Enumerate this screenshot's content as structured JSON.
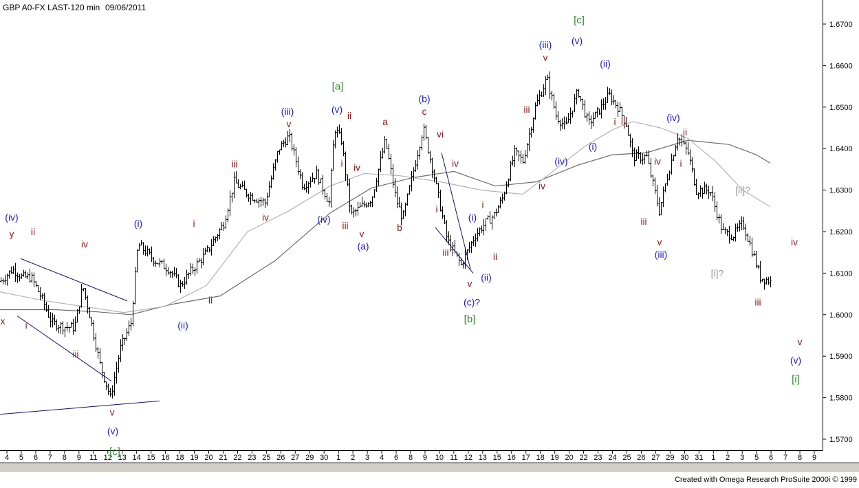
{
  "header": {
    "symbol": "GBP A0-FX LAST-120 min",
    "date": "09/06/2011"
  },
  "footer": {
    "credit": "Created with Omega Research ProSuite 2000i © 1999"
  },
  "colors": {
    "background": "#ffffff",
    "bars": "#000000",
    "wave_blue": "#1a1ad0",
    "wave_maroon": "#8b1a1a",
    "wave_green": "#2e8b2e",
    "wave_gray": "#9a9a9a",
    "trendline": "#10106e",
    "ma_slow": "#6a6a6a",
    "ma_fast": "#b4b4b4"
  },
  "chart_data": {
    "type": "ohlc",
    "title": "GBP A0-FX LAST-120 min",
    "ylim": [
      1.565,
      1.6735
    ],
    "y_ticks": [
      "1.5700",
      "1.5800",
      "1.5900",
      "1.6000",
      "1.6100",
      "1.6200",
      "1.6300",
      "1.6400",
      "1.6500",
      "1.6600",
      "1.6700"
    ],
    "y_tick_values": [
      1.57,
      1.58,
      1.59,
      1.6,
      1.61,
      1.62,
      1.63,
      1.64,
      1.65,
      1.66,
      1.67
    ],
    "x_ticks": [
      "4",
      "5",
      "6",
      "7",
      "8",
      "9",
      "11",
      "12",
      "13",
      "14",
      "15",
      "16",
      "18",
      "19",
      "20",
      "21",
      "22",
      "23",
      "25",
      "26",
      "27",
      "29",
      "30",
      "1",
      "2",
      "3",
      "4",
      "6",
      "8",
      "9",
      "10",
      "11",
      "12",
      "13",
      "15",
      "16",
      "17",
      "18",
      "19",
      "20",
      "22",
      "23",
      "24",
      "25",
      "26",
      "27",
      "29",
      "30",
      "31",
      "1",
      "2",
      "3",
      "5",
      "6",
      "7",
      "8",
      "9"
    ],
    "price_path": [
      [
        0,
        1.608
      ],
      [
        18,
        1.611
      ],
      [
        32,
        1.609
      ],
      [
        45,
        1.609
      ],
      [
        60,
        1.604
      ],
      [
        75,
        1.598
      ],
      [
        95,
        1.597
      ],
      [
        108,
        1.597
      ],
      [
        120,
        1.607
      ],
      [
        130,
        1.6
      ],
      [
        145,
        1.588
      ],
      [
        160,
        1.58
      ],
      [
        175,
        1.592
      ],
      [
        190,
        1.598
      ],
      [
        200,
        1.617
      ],
      [
        225,
        1.613
      ],
      [
        245,
        1.611
      ],
      [
        262,
        1.607
      ],
      [
        275,
        1.61
      ],
      [
        300,
        1.615
      ],
      [
        325,
        1.622
      ],
      [
        340,
        1.632
      ],
      [
        360,
        1.629
      ],
      [
        385,
        1.627
      ],
      [
        405,
        1.64
      ],
      [
        420,
        1.643
      ],
      [
        440,
        1.631
      ],
      [
        460,
        1.634
      ],
      [
        478,
        1.627
      ],
      [
        486,
        1.645
      ],
      [
        496,
        1.642
      ],
      [
        510,
        1.624
      ],
      [
        525,
        1.626
      ],
      [
        540,
        1.628
      ],
      [
        560,
        1.642
      ],
      [
        575,
        1.628
      ],
      [
        585,
        1.623
      ],
      [
        600,
        1.634
      ],
      [
        615,
        1.645
      ],
      [
        630,
        1.634
      ],
      [
        650,
        1.618
      ],
      [
        670,
        1.612
      ],
      [
        690,
        1.619
      ],
      [
        705,
        1.622
      ],
      [
        718,
        1.624
      ],
      [
        730,
        1.628
      ],
      [
        748,
        1.639
      ],
      [
        760,
        1.637
      ],
      [
        778,
        1.65
      ],
      [
        795,
        1.657
      ],
      [
        808,
        1.648
      ],
      [
        822,
        1.645
      ],
      [
        840,
        1.654
      ],
      [
        855,
        1.646
      ],
      [
        870,
        1.649
      ],
      [
        885,
        1.653
      ],
      [
        898,
        1.65
      ],
      [
        910,
        1.646
      ],
      [
        920,
        1.638
      ],
      [
        940,
        1.638
      ],
      [
        958,
        1.625
      ],
      [
        968,
        1.632
      ],
      [
        985,
        1.643
      ],
      [
        1000,
        1.639
      ],
      [
        1012,
        1.63
      ],
      [
        1032,
        1.63
      ],
      [
        1050,
        1.62
      ],
      [
        1065,
        1.619
      ],
      [
        1080,
        1.622
      ],
      [
        1092,
        1.616
      ],
      [
        1105,
        1.609
      ],
      [
        1120,
        1.608
      ]
    ],
    "moving_averages": [
      {
        "name": "",
        "color": "#6a6a6a",
        "points": [
          [
            0,
            1.6012
          ],
          [
            80,
            1.6012
          ],
          [
            140,
            1.6007
          ],
          [
            190,
            1.6
          ],
          [
            250,
            1.6025
          ],
          [
            320,
            1.6045
          ],
          [
            400,
            1.613
          ],
          [
            480,
            1.6245
          ],
          [
            540,
            1.6305
          ],
          [
            600,
            1.633
          ],
          [
            660,
            1.6345
          ],
          [
            720,
            1.631
          ],
          [
            780,
            1.632
          ],
          [
            840,
            1.636
          ],
          [
            890,
            1.6385
          ],
          [
            940,
            1.639
          ],
          [
            1000,
            1.642
          ],
          [
            1060,
            1.641
          ],
          [
            1100,
            1.6385
          ],
          [
            1120,
            1.6365
          ]
        ]
      },
      {
        "name": "",
        "color": "#b4b4b4",
        "points": [
          [
            0,
            1.6055
          ],
          [
            60,
            1.6035
          ],
          [
            120,
            1.602
          ],
          [
            180,
            1.6005
          ],
          [
            240,
            1.602
          ],
          [
            300,
            1.607
          ],
          [
            360,
            1.62
          ],
          [
            420,
            1.625
          ],
          [
            480,
            1.631
          ],
          [
            530,
            1.634
          ],
          [
            580,
            1.6335
          ],
          [
            640,
            1.632
          ],
          [
            700,
            1.63
          ],
          [
            760,
            1.629
          ],
          [
            800,
            1.634
          ],
          [
            850,
            1.6405
          ],
          [
            890,
            1.6445
          ],
          [
            920,
            1.6465
          ],
          [
            960,
            1.645
          ],
          [
            1000,
            1.6425
          ],
          [
            1040,
            1.637
          ],
          [
            1080,
            1.63
          ],
          [
            1120,
            1.626
          ]
        ]
      }
    ],
    "trendlines": [
      {
        "from": [
          30,
          1.6135
        ],
        "to": [
          185,
          1.6033
        ]
      },
      {
        "from": [
          25,
          1.5997
        ],
        "to": [
          162,
          1.584
        ]
      },
      {
        "from": [
          0,
          1.576
        ],
        "to": [
          232,
          1.5792
        ]
      },
      {
        "from": [
          642,
          1.639
        ],
        "to": [
          684,
          1.611
        ]
      },
      {
        "from": [
          633,
          1.621
        ],
        "to": [
          688,
          1.61
        ]
      }
    ],
    "wave_labels": [
      {
        "text": "(iv)",
        "x": 17,
        "y": 1.6235,
        "color": "blue"
      },
      {
        "text": "y",
        "x": 17,
        "y": 1.6195,
        "color": "maroon"
      },
      {
        "text": "ii",
        "x": 48,
        "y": 1.62,
        "color": "maroon"
      },
      {
        "text": "x",
        "x": 4,
        "y": 1.5985,
        "color": "maroon"
      },
      {
        "text": "i",
        "x": 38,
        "y": 1.5975,
        "color": "maroon"
      },
      {
        "text": "iv",
        "x": 123,
        "y": 1.617,
        "color": "maroon"
      },
      {
        "text": "iii",
        "x": 110,
        "y": 1.5905,
        "color": "maroon"
      },
      {
        "text": "v",
        "x": 163,
        "y": 1.5765,
        "color": "maroon"
      },
      {
        "text": "(v)",
        "x": 164,
        "y": 1.572,
        "color": "blue"
      },
      {
        "text": "[c]",
        "x": 167,
        "y": 1.567,
        "color": "green"
      },
      {
        "text": "(i)",
        "x": 201,
        "y": 1.622,
        "color": "blue"
      },
      {
        "text": "i",
        "x": 282,
        "y": 1.622,
        "color": "maroon"
      },
      {
        "text": "(ii)",
        "x": 266,
        "y": 1.5975,
        "color": "blue"
      },
      {
        "text": "ii",
        "x": 306,
        "y": 1.6035,
        "color": "maroon"
      },
      {
        "text": "iii",
        "x": 341,
        "y": 1.6363,
        "color": "maroon"
      },
      {
        "text": "iv",
        "x": 386,
        "y": 1.6235,
        "color": "maroon"
      },
      {
        "text": "(iii)",
        "x": 418,
        "y": 1.649,
        "color": "blue"
      },
      {
        "text": "v",
        "x": 420,
        "y": 1.646,
        "color": "maroon"
      },
      {
        "text": "(iv)",
        "x": 471,
        "y": 1.623,
        "color": "blue"
      },
      {
        "text": "[a]",
        "x": 491,
        "y": 1.655,
        "color": "green"
      },
      {
        "text": "(v)",
        "x": 490,
        "y": 1.6495,
        "color": "blue"
      },
      {
        "text": "ii",
        "x": 508,
        "y": 1.648,
        "color": "maroon"
      },
      {
        "text": "i",
        "x": 497,
        "y": 1.6365,
        "color": "maroon"
      },
      {
        "text": "iv",
        "x": 519,
        "y": 1.6355,
        "color": "maroon"
      },
      {
        "text": "iii",
        "x": 502,
        "y": 1.6215,
        "color": "maroon"
      },
      {
        "text": "v",
        "x": 526,
        "y": 1.6195,
        "color": "maroon"
      },
      {
        "text": "(a)",
        "x": 528,
        "y": 1.6165,
        "color": "blue"
      },
      {
        "text": "a",
        "x": 560,
        "y": 1.6465,
        "color": "maroon"
      },
      {
        "text": "b",
        "x": 581,
        "y": 1.621,
        "color": "maroon"
      },
      {
        "text": "(b)",
        "x": 617,
        "y": 1.652,
        "color": "blue"
      },
      {
        "text": "c",
        "x": 617,
        "y": 1.649,
        "color": "maroon"
      },
      {
        "text": "vi",
        "x": 640,
        "y": 1.6435,
        "color": "maroon"
      },
      {
        "text": "iv",
        "x": 662,
        "y": 1.6365,
        "color": "maroon"
      },
      {
        "text": "i",
        "x": 635,
        "y": 1.6255,
        "color": "maroon"
      },
      {
        "text": "(i)",
        "x": 687,
        "y": 1.6235,
        "color": "blue"
      },
      {
        "text": "i",
        "x": 702,
        "y": 1.6265,
        "color": "maroon"
      },
      {
        "text": "iii",
        "x": 648,
        "y": 1.615,
        "color": "maroon"
      },
      {
        "text": "ii",
        "x": 720,
        "y": 1.614,
        "color": "maroon"
      },
      {
        "text": "v",
        "x": 683,
        "y": 1.6075,
        "color": "maroon"
      },
      {
        "text": "(ii)",
        "x": 707,
        "y": 1.609,
        "color": "blue"
      },
      {
        "text": "(c)?",
        "x": 686,
        "y": 1.603,
        "color": "blue"
      },
      {
        "text": "[b]",
        "x": 683,
        "y": 1.599,
        "color": "green"
      },
      {
        "text": "iii",
        "x": 766,
        "y": 1.6495,
        "color": "maroon"
      },
      {
        "text": "iv",
        "x": 788,
        "y": 1.631,
        "color": "maroon"
      },
      {
        "text": "(iv)",
        "x": 816,
        "y": 1.637,
        "color": "blue"
      },
      {
        "text": "(iii)",
        "x": 793,
        "y": 1.665,
        "color": "blue"
      },
      {
        "text": "v",
        "x": 793,
        "y": 1.662,
        "color": "maroon"
      },
      {
        "text": "(v)",
        "x": 839,
        "y": 1.666,
        "color": "blue"
      },
      {
        "text": "[c]",
        "x": 842,
        "y": 1.671,
        "color": "green"
      },
      {
        "text": "(ii)",
        "x": 880,
        "y": 1.6605,
        "color": "blue"
      },
      {
        "text": "ii",
        "x": 906,
        "y": 1.6465,
        "color": "maroon"
      },
      {
        "text": "i",
        "x": 894,
        "y": 1.6465,
        "color": "maroon"
      },
      {
        "text": "(i)",
        "x": 862,
        "y": 1.6405,
        "color": "blue"
      },
      {
        "text": "iv",
        "x": 956,
        "y": 1.637,
        "color": "maroon"
      },
      {
        "text": "i",
        "x": 990,
        "y": 1.6365,
        "color": "maroon"
      },
      {
        "text": "(iv)",
        "x": 979,
        "y": 1.6475,
        "color": "blue"
      },
      {
        "text": "ii",
        "x": 996,
        "y": 1.644,
        "color": "maroon"
      },
      {
        "text": "iii",
        "x": 936,
        "y": 1.6225,
        "color": "maroon"
      },
      {
        "text": "v",
        "x": 959,
        "y": 1.6175,
        "color": "maroon"
      },
      {
        "text": "(iii)",
        "x": 961,
        "y": 1.6145,
        "color": "blue"
      },
      {
        "text": "[ii]?",
        "x": 1080,
        "y": 1.63,
        "color": "gray"
      },
      {
        "text": "[i]?",
        "x": 1043,
        "y": 1.61,
        "color": "gray"
      },
      {
        "text": "iii",
        "x": 1102,
        "y": 1.603,
        "color": "maroon"
      },
      {
        "text": "iv",
        "x": 1155,
        "y": 1.6175,
        "color": "maroon"
      },
      {
        "text": "v",
        "x": 1163,
        "y": 1.5935,
        "color": "maroon"
      },
      {
        "text": "(v)",
        "x": 1157,
        "y": 1.589,
        "color": "blue"
      },
      {
        "text": "[i]",
        "x": 1157,
        "y": 1.5845,
        "color": "green"
      }
    ]
  }
}
